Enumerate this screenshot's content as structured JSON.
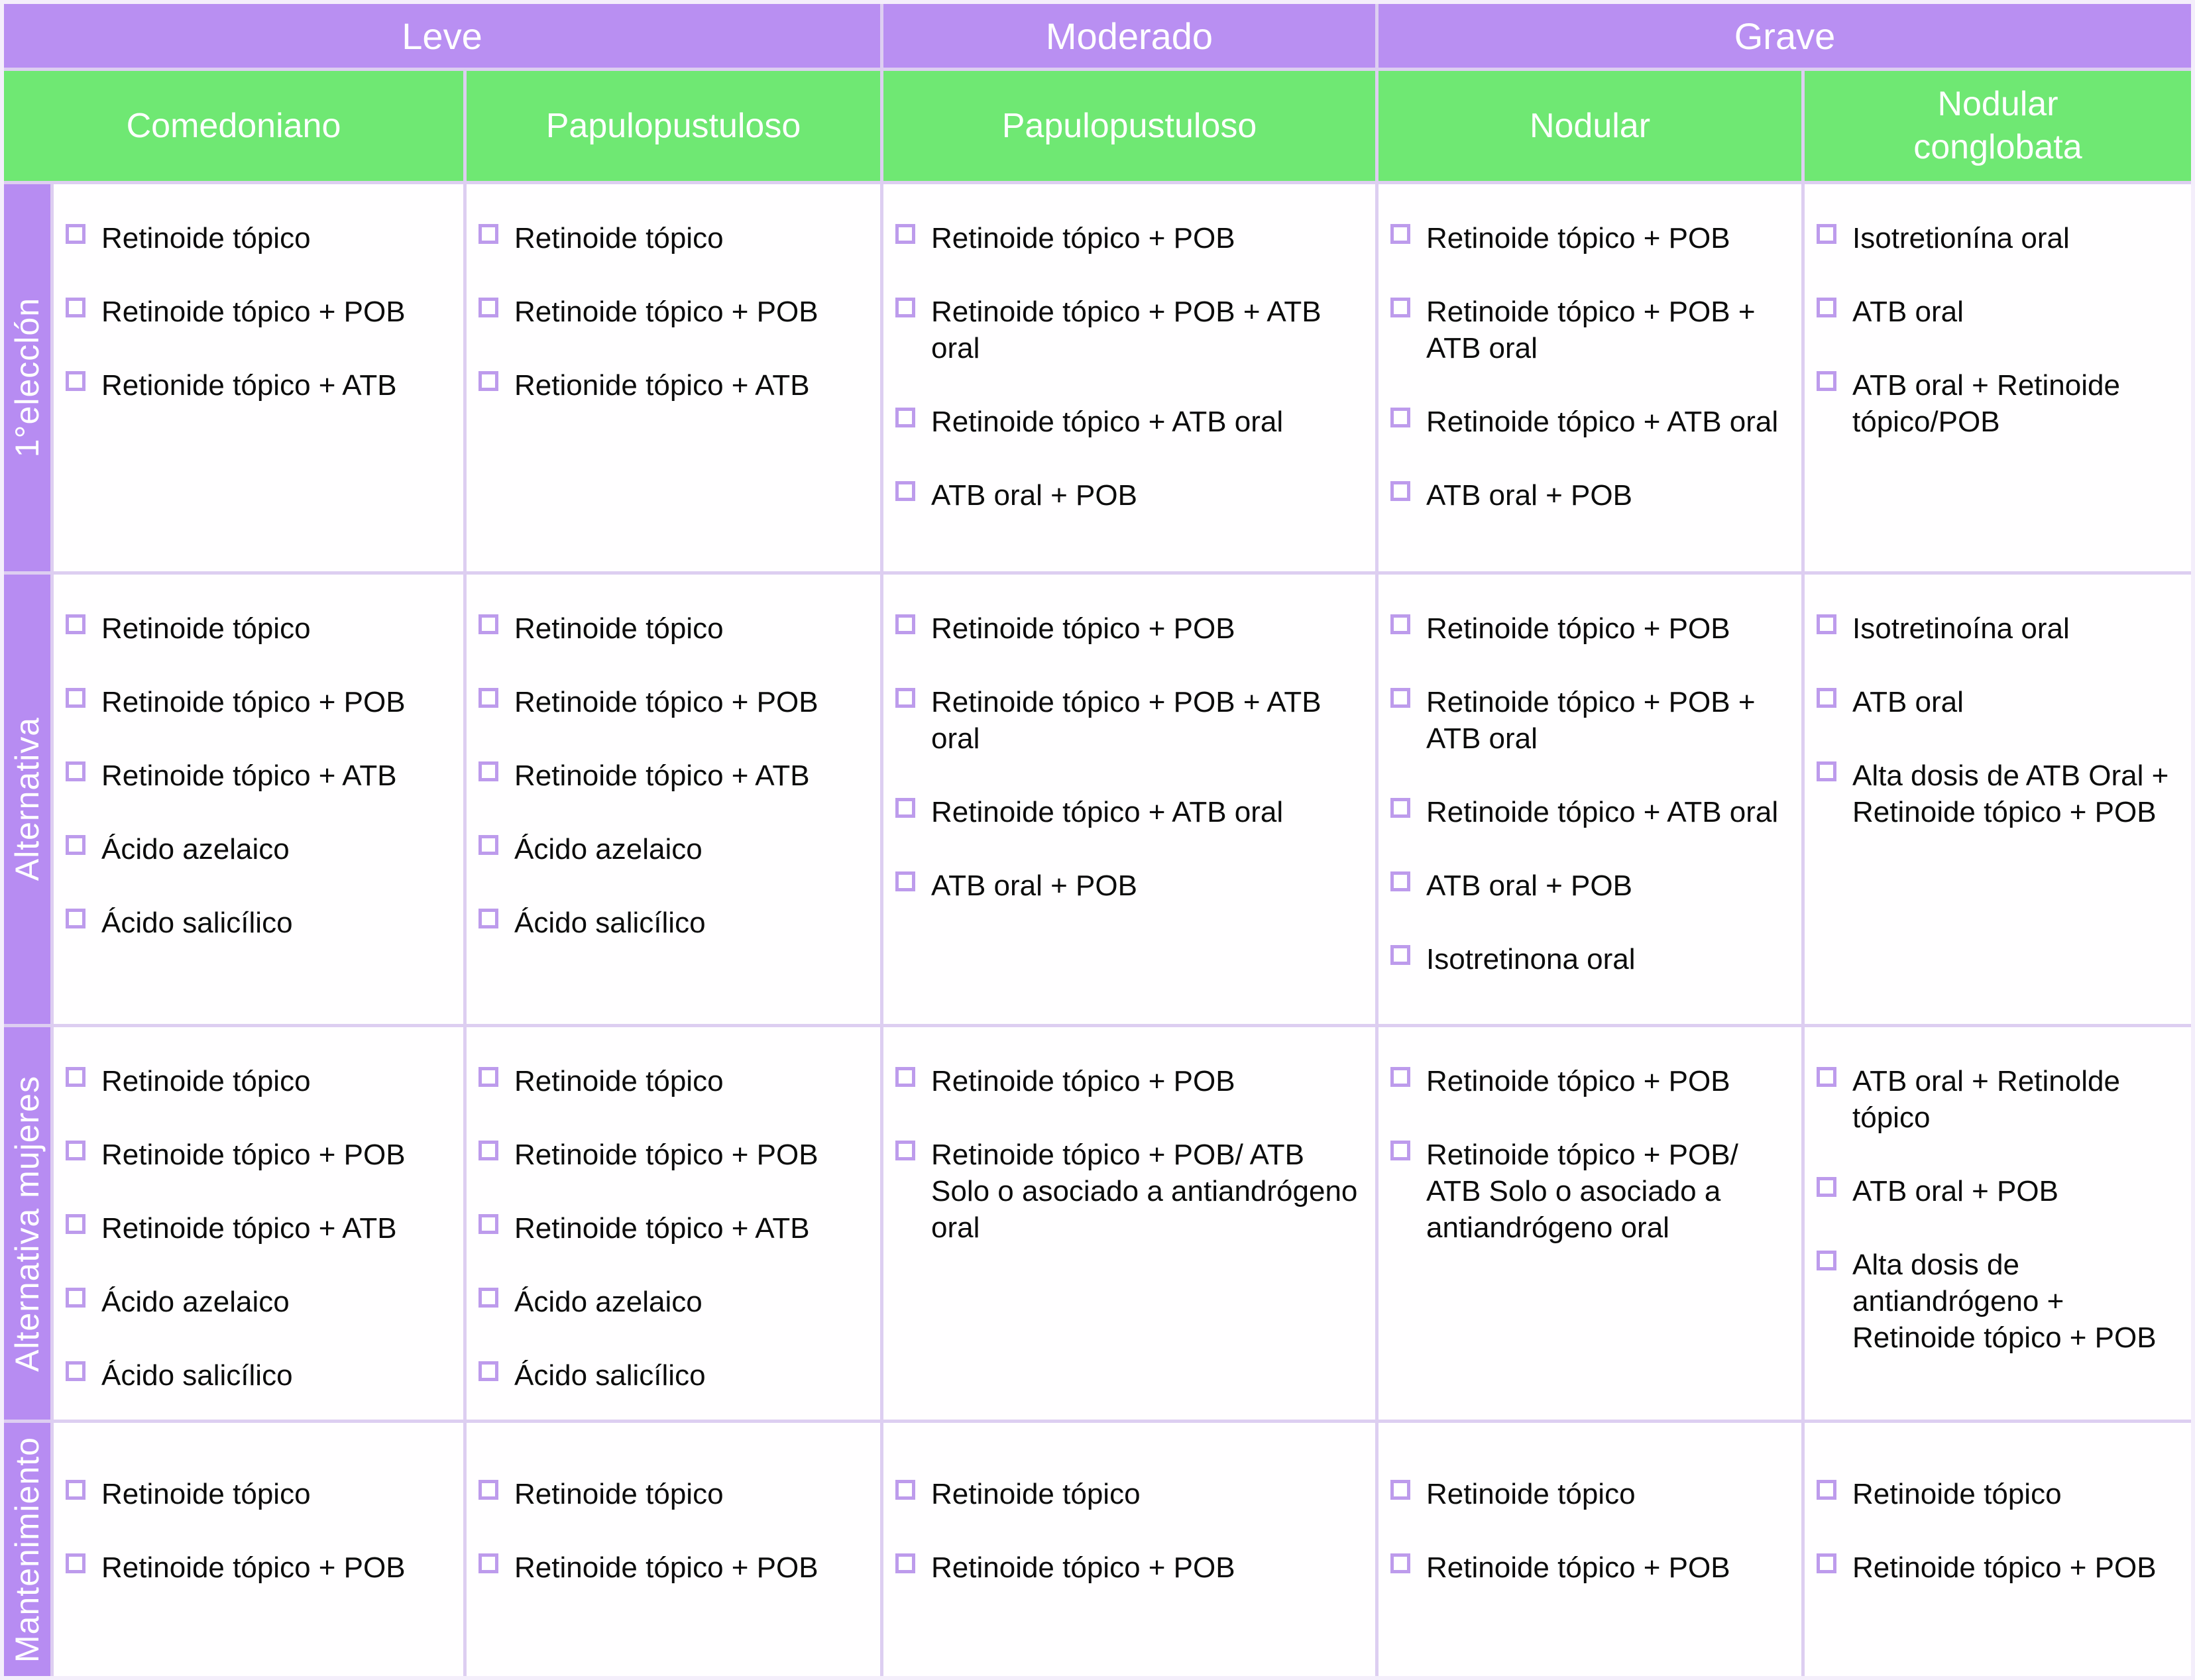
{
  "colors": {
    "header-purple": "#b98ff2",
    "header-green": "#6fe873",
    "row-label-purple": "#b78cf2",
    "checkbox-border": "#bd9bec",
    "grid-line": "#ddcef1",
    "cell-bg": "#fffeff",
    "outer-bg": "#f4eefb",
    "text": "#0c0c0c"
  },
  "headers": {
    "severity": [
      "Leve",
      "Moderado",
      "Grave"
    ],
    "types": [
      "Comedoniano",
      "Papulopustuloso",
      "Papulopustuloso",
      "Nodular",
      "Nodular conglobata"
    ]
  },
  "rows": [
    {
      "label": "1°elecclón",
      "cells": [
        [
          "Retinoide tópico",
          "Retinoide tópico + POB",
          "Retionide tópico + ATB"
        ],
        [
          "Retinoide tópico",
          "Retinoide tópico + POB",
          "Retionide tópico + ATB"
        ],
        [
          "Retinoide tópico + POB",
          "Retinoide tópico + POB + ATB oral",
          "Retinoide tópico + ATB oral",
          "ATB oral + POB"
        ],
        [
          "Retinoide tópico + POB",
          "Retinoide tópico + POB + ATB oral",
          "Retinoide tópico + ATB oral",
          "ATB oral + POB"
        ],
        [
          "Isotretionína oral",
          "ATB oral",
          "ATB oral + Retinoide tópico/POB"
        ]
      ]
    },
    {
      "label": "Alternativa",
      "cells": [
        [
          "Retinoide tópico",
          "Retinoide tópico + POB",
          "Retinoide tópico + ATB",
          "Ácido azelaico",
          "Ácido salicílico"
        ],
        [
          "Retinoide tópico",
          "Retinoide tópico + POB",
          "Retinoide tópico + ATB",
          "Ácido azelaico",
          "Ácido salicílico"
        ],
        [
          "Retinoide tópico + POB",
          "Retinoide tópico + POB + ATB oral",
          "Retinoide tópico + ATB oral",
          "ATB oral + POB"
        ],
        [
          "Retinoide tópico + POB",
          "Retinoide tópico + POB + ATB oral",
          "Retinoide tópico + ATB oral",
          "ATB oral + POB",
          "Isotretinona oral"
        ],
        [
          "Isotretinoína oral",
          "ATB oral",
          "Alta dosis de ATB Oral + Retinoide tópico + POB"
        ]
      ]
    },
    {
      "label": "Alternativa mujeres",
      "cells": [
        [
          "Retinoide tópico",
          "Retinoide tópico + POB",
          "Retinoide tópico + ATB",
          "Ácido azelaico",
          "Ácido salicílico"
        ],
        [
          "Retinoide tópico",
          "Retinoide tópico + POB",
          "Retinoide tópico + ATB",
          "Ácido azelaico",
          "Ácido salicílico"
        ],
        [
          "Retinoide tópico + POB",
          "Retinoide tópico + POB/ ATB Solo o asociado a antiandrógeno oral"
        ],
        [
          "Retinoide tópico + POB",
          "Retinoide tópico + POB/ ATB Solo o asociado a antiandrógeno oral"
        ],
        [
          "ATB oral + Retinolde tópico",
          "ATB oral + POB",
          "Alta dosis de antiandrógeno + Retinoide tópico + POB"
        ]
      ]
    },
    {
      "label": "Mantenimiento",
      "cells": [
        [
          "Retinoide tópico",
          "Retinoide tópico + POB"
        ],
        [
          "Retinoide tópico",
          "Retinoide tópico + POB"
        ],
        [
          "Retinoide tópico",
          "Retinoide tópico + POB"
        ],
        [
          "Retinoide tópico",
          "Retinoide tópico + POB"
        ],
        [
          "Retinoide tópico",
          "Retinoide tópico + POB"
        ]
      ]
    }
  ]
}
